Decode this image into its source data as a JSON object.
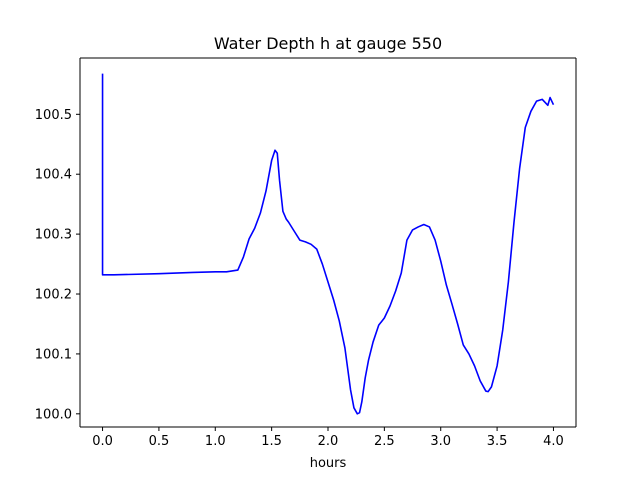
{
  "chart_data": {
    "type": "line",
    "title": "Water Depth h at gauge 550",
    "xlabel": "hours",
    "ylabel": "",
    "xlim": [
      -0.2,
      4.2
    ],
    "ylim": [
      99.978,
      100.594
    ],
    "xticks": [
      0.0,
      0.5,
      1.0,
      1.5,
      2.0,
      2.5,
      3.0,
      3.5,
      4.0
    ],
    "xtick_labels": [
      "0.0",
      "0.5",
      "1.0",
      "1.5",
      "2.0",
      "2.5",
      "3.0",
      "3.5",
      "4.0"
    ],
    "yticks": [
      100.0,
      100.1,
      100.2,
      100.3,
      100.4,
      100.5
    ],
    "ytick_labels": [
      "100.0",
      "100.1",
      "100.2",
      "100.3",
      "100.4",
      "100.5"
    ],
    "grid": false,
    "series": [
      {
        "color": "#0000ff",
        "x": [
          0.0,
          0.0,
          0.0,
          0.1,
          0.5,
          0.8,
          1.0,
          1.1,
          1.2,
          1.25,
          1.3,
          1.35,
          1.4,
          1.45,
          1.5,
          1.53,
          1.55,
          1.57,
          1.6,
          1.63,
          1.65,
          1.7,
          1.75,
          1.8,
          1.85,
          1.9,
          1.95,
          2.0,
          2.05,
          2.1,
          2.15,
          2.2,
          2.23,
          2.26,
          2.28,
          2.3,
          2.33,
          2.36,
          2.4,
          2.45,
          2.5,
          2.55,
          2.6,
          2.65,
          2.7,
          2.75,
          2.8,
          2.85,
          2.9,
          2.95,
          3.0,
          3.05,
          3.1,
          3.15,
          3.2,
          3.25,
          3.3,
          3.35,
          3.4,
          3.42,
          3.45,
          3.5,
          3.55,
          3.6,
          3.65,
          3.7,
          3.75,
          3.8,
          3.85,
          3.9,
          3.95,
          3.97,
          4.0
        ],
        "y": [
          100.568,
          100.4,
          100.232,
          100.232,
          100.234,
          100.236,
          100.237,
          100.237,
          100.24,
          100.262,
          100.292,
          100.31,
          100.335,
          100.372,
          100.423,
          100.44,
          100.435,
          100.39,
          100.338,
          100.325,
          100.32,
          100.305,
          100.29,
          100.287,
          100.283,
          100.275,
          100.25,
          100.22,
          100.19,
          100.155,
          100.11,
          100.04,
          100.01,
          100.0,
          100.002,
          100.02,
          100.06,
          100.09,
          100.12,
          100.148,
          100.16,
          100.18,
          100.205,
          100.235,
          100.29,
          100.307,
          100.312,
          100.316,
          100.312,
          100.29,
          100.255,
          100.215,
          100.183,
          100.15,
          100.115,
          100.1,
          100.08,
          100.055,
          100.038,
          100.037,
          100.045,
          100.08,
          100.14,
          100.22,
          100.32,
          100.41,
          100.478,
          100.505,
          100.522,
          100.525,
          100.515,
          100.528,
          100.516
        ]
      }
    ]
  }
}
